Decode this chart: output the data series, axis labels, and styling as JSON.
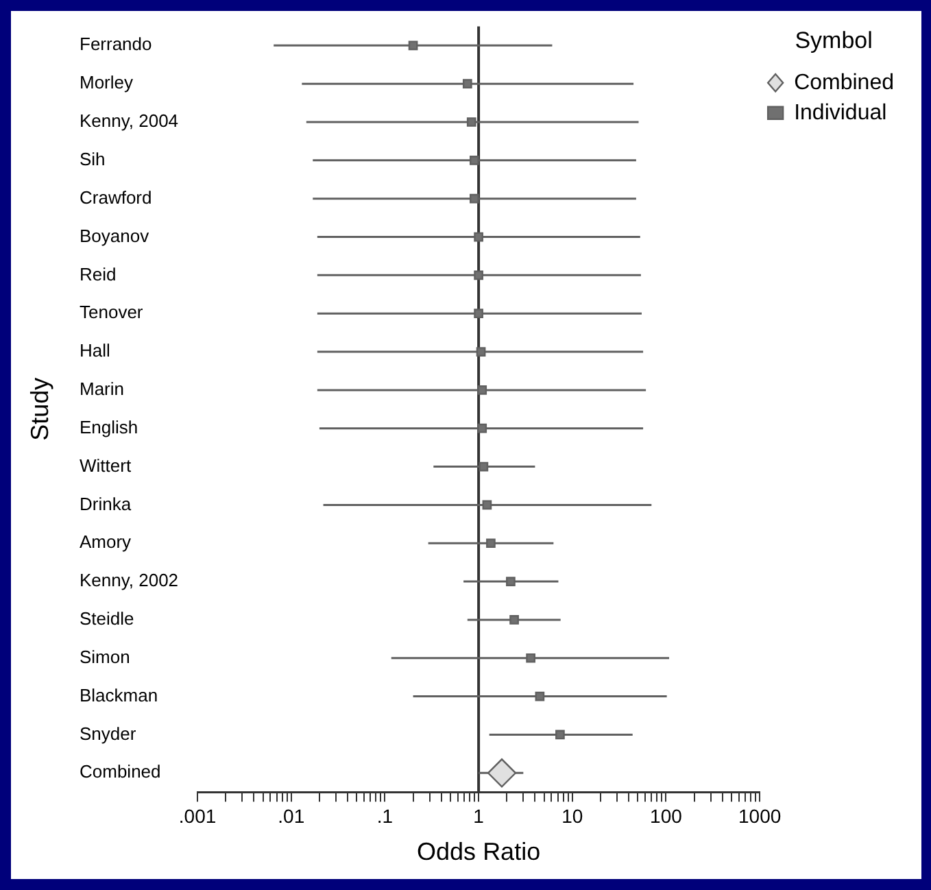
{
  "chart_data": {
    "type": "scatter",
    "orientation": "horizontal",
    "log": "x",
    "categories": [
      "Ferrando",
      "Morley",
      "Kenny, 2004",
      "Sih",
      "Crawford",
      "Boyanov",
      "Reid",
      "Tenover",
      "Hall",
      "Marin",
      "English",
      "Wittert",
      "Drinka",
      "Amory",
      "Kenny, 2002",
      "Steidle",
      "Simon",
      "Blackman",
      "Snyder",
      "Combined"
    ],
    "series": [
      {
        "name": "Combined",
        "color": "#e0e0e0",
        "marker": "diamond",
        "values": [
          null,
          null,
          null,
          null,
          null,
          null,
          null,
          null,
          null,
          null,
          null,
          null,
          null,
          null,
          null,
          null,
          null,
          null,
          null,
          1.77
        ],
        "errors": [
          null,
          null,
          null,
          null,
          null,
          null,
          null,
          null,
          null,
          null,
          null,
          null,
          null,
          null,
          null,
          null,
          null,
          null,
          null,
          [
            1.0,
            3.0
          ]
        ]
      },
      {
        "name": "Individual",
        "color": "#707070",
        "marker": "square",
        "values": [
          0.2,
          0.76,
          0.84,
          0.9,
          0.9,
          1.0,
          1.0,
          1.0,
          1.06,
          1.09,
          1.09,
          1.13,
          1.23,
          1.35,
          2.2,
          2.4,
          3.6,
          4.5,
          7.4,
          null
        ],
        "errors": [
          [
            0.0065,
            6.1
          ],
          [
            0.013,
            45
          ],
          [
            0.0145,
            51
          ],
          [
            0.017,
            48
          ],
          [
            0.017,
            48
          ],
          [
            0.019,
            53
          ],
          [
            0.019,
            54
          ],
          [
            0.019,
            55
          ],
          [
            0.019,
            57
          ],
          [
            0.019,
            61
          ],
          [
            0.02,
            57
          ],
          [
            0.33,
            4.0
          ],
          [
            0.022,
            70
          ],
          [
            0.29,
            6.3
          ],
          [
            0.69,
            7.1
          ],
          [
            0.76,
            7.5
          ],
          [
            0.117,
            108
          ],
          [
            0.2,
            102
          ],
          [
            1.3,
            44
          ],
          null
        ]
      }
    ],
    "xlim": [
      0.001,
      1000
    ],
    "xticks": [
      {
        "value": 0.001,
        "label": ".001"
      },
      {
        "value": 0.002,
        "label": null
      },
      {
        "value": 0.003,
        "label": null
      },
      {
        "value": 0.004,
        "label": null
      },
      {
        "value": 0.005,
        "label": null
      },
      {
        "value": 0.006,
        "label": null
      },
      {
        "value": 0.007,
        "label": null
      },
      {
        "value": 0.008,
        "label": null
      },
      {
        "value": 0.009,
        "label": null
      },
      {
        "value": 0.01,
        "label": ".01"
      },
      {
        "value": 0.02,
        "label": null
      },
      {
        "value": 0.03,
        "label": null
      },
      {
        "value": 0.04,
        "label": null
      },
      {
        "value": 0.05,
        "label": null
      },
      {
        "value": 0.06,
        "label": null
      },
      {
        "value": 0.07,
        "label": null
      },
      {
        "value": 0.08,
        "label": null
      },
      {
        "value": 0.09,
        "label": null
      },
      {
        "value": 0.1,
        "label": ".1"
      },
      {
        "value": 0.2,
        "label": null
      },
      {
        "value": 0.3,
        "label": null
      },
      {
        "value": 0.4,
        "label": null
      },
      {
        "value": 0.5,
        "label": null
      },
      {
        "value": 0.6,
        "label": null
      },
      {
        "value": 0.7,
        "label": null
      },
      {
        "value": 0.8,
        "label": null
      },
      {
        "value": 0.9,
        "label": null
      },
      1,
      {
        "value": 2,
        "label": null
      },
      {
        "value": 3,
        "label": null
      },
      {
        "value": 4,
        "label": null
      },
      {
        "value": 5,
        "label": null
      },
      {
        "value": 6,
        "label": null
      },
      {
        "value": 7,
        "label": null
      },
      {
        "value": 8,
        "label": null
      },
      {
        "value": 9,
        "label": null
      },
      10,
      {
        "value": 20,
        "label": null
      },
      {
        "value": 30,
        "label": null
      },
      {
        "value": 40,
        "label": null
      },
      {
        "value": 50,
        "label": null
      },
      {
        "value": 60,
        "label": null
      },
      {
        "value": 70,
        "label": null
      },
      {
        "value": 80,
        "label": null
      },
      {
        "value": 90,
        "label": null
      },
      100,
      {
        "value": 200,
        "label": null
      },
      {
        "value": 300,
        "label": null
      },
      {
        "value": 400,
        "label": null
      },
      {
        "value": 500,
        "label": null
      },
      {
        "value": 600,
        "label": null
      },
      {
        "value": 700,
        "label": null
      },
      {
        "value": 800,
        "label": null
      },
      {
        "value": 900,
        "label": null
      },
      1000
    ],
    "xlabel": "Odds Ratio",
    "ylabel": "Study",
    "legend": "top right",
    "legend_title": "Symbol",
    "ref_lines": [
      {
        "axis": "x",
        "value": 1,
        "color": "#333333"
      }
    ]
  }
}
